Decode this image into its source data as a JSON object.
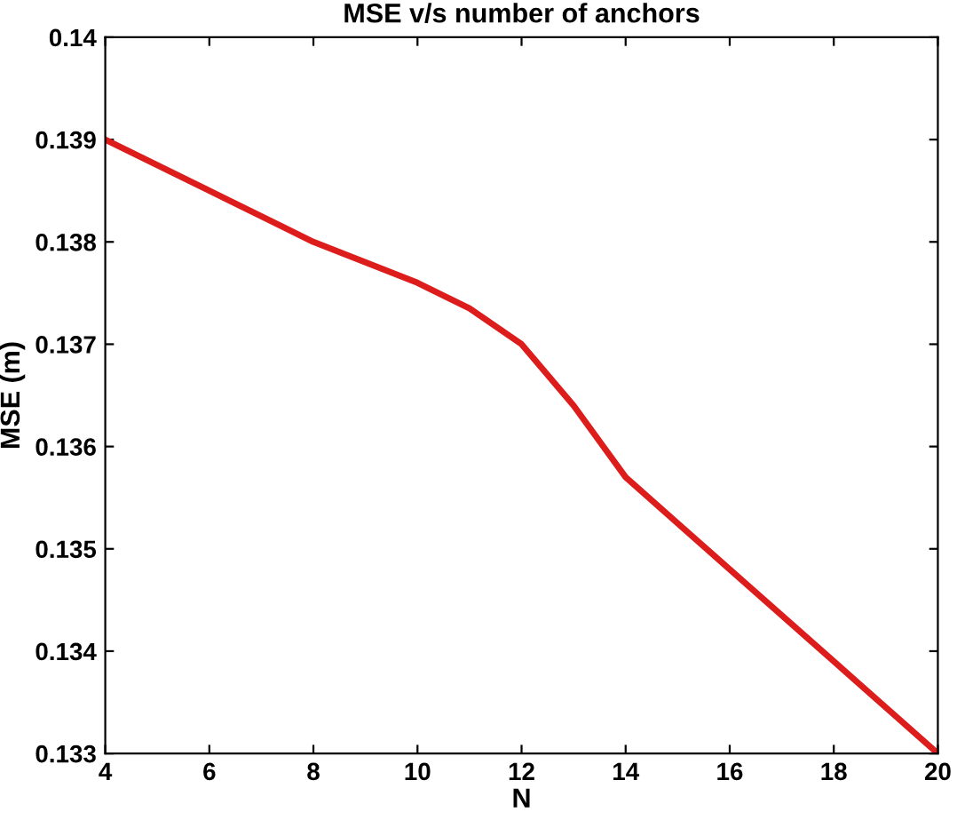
{
  "chart_data": {
    "type": "line",
    "title": "MSE v/s number of anchors",
    "xlabel": "N",
    "ylabel": "MSE (m)",
    "x": [
      4,
      6,
      8,
      10,
      11,
      12,
      13,
      14,
      16,
      18,
      20
    ],
    "series": [
      {
        "color": "#dd1c1c",
        "values": [
          0.139,
          0.1385,
          0.138,
          0.1376,
          0.13735,
          0.137,
          0.1364,
          0.1357,
          0.1348,
          0.1339,
          0.133
        ]
      }
    ],
    "xlim": [
      4,
      20
    ],
    "xticks": [
      4,
      6,
      8,
      10,
      12,
      14,
      16,
      18,
      20
    ],
    "ylim": [
      0.133,
      0.14
    ],
    "yticks": [
      0.133,
      0.134,
      0.135,
      0.136,
      0.137,
      0.138,
      0.139,
      0.14
    ],
    "grid": false,
    "legend": false,
    "marker": "none",
    "line_style": "solid"
  }
}
